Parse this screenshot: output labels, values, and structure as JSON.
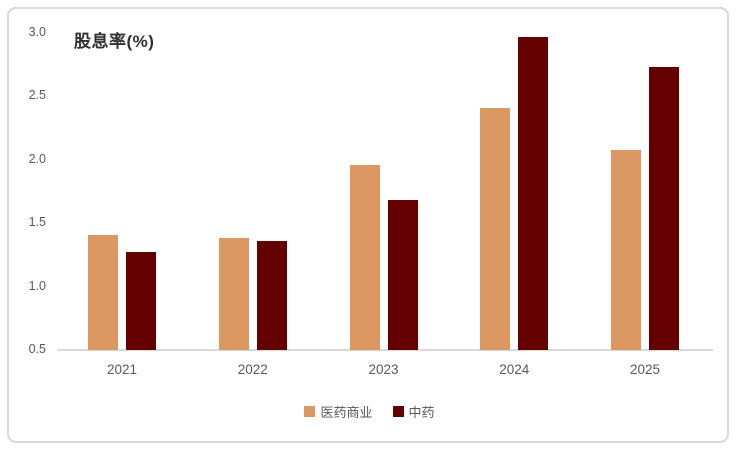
{
  "chart_data": {
    "type": "bar",
    "title": "股息率(%)",
    "categories": [
      "2021",
      "2022",
      "2023",
      "2024",
      "2025"
    ],
    "series": [
      {
        "name": "医药商业",
        "color": "#DC9862",
        "values": [
          1.41,
          1.38,
          1.96,
          2.41,
          2.08
        ]
      },
      {
        "name": "中药",
        "color": "#650001",
        "values": [
          1.27,
          1.36,
          1.68,
          2.97,
          2.73
        ]
      }
    ],
    "xlabel": "",
    "ylabel": "股息率(%)",
    "ylim": [
      0.5,
      3.0
    ],
    "yticks": [
      0.5,
      1.0,
      1.5,
      2.0,
      2.5,
      3.0
    ],
    "grid": false,
    "legend_position": "bottom"
  },
  "colors": {
    "background": "#FFFFFF",
    "border": "#D9D9D9",
    "axis_line": "#D9D9D9",
    "tick_text": "#595959",
    "title_text": "#303030"
  }
}
